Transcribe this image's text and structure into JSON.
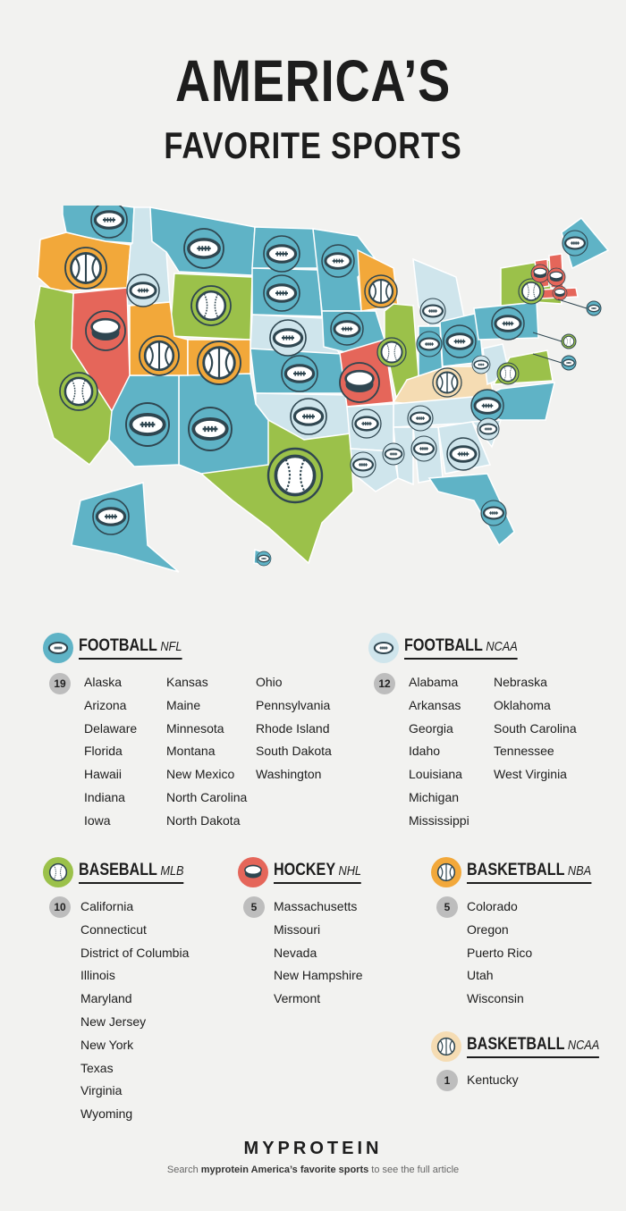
{
  "title": {
    "line1": "AMERICA’S",
    "line2": "FAVORITE SPORTS"
  },
  "colors": {
    "football_nfl": "#5fb3c6",
    "football_ncaa": "#cfe5ec",
    "baseball_mlb": "#9bc14a",
    "hockey_nhl": "#e5665a",
    "basketball_nba": "#f2a83a",
    "basketball_ncaa": "#f5dcb3",
    "icon_dark": "#2f4650"
  },
  "legend": {
    "football_nfl": {
      "label": "FOOTBALL",
      "league": "NFL",
      "count": "19",
      "icon": "football-icon",
      "columns": [
        [
          "Alaska",
          "Arizona",
          "Delaware",
          "Florida",
          "Hawaii",
          "Indiana",
          "Iowa"
        ],
        [
          "Kansas",
          "Maine",
          "Minnesota",
          "Montana",
          "New Mexico",
          "North Carolina",
          "North Dakota"
        ],
        [
          "Ohio",
          "Pennsylvania",
          "Rhode Island",
          "South Dakota",
          "Washington"
        ]
      ]
    },
    "football_ncaa": {
      "label": "FOOTBALL",
      "league": "NCAA",
      "count": "12",
      "icon": "football-icon",
      "columns": [
        [
          "Alabama",
          "Arkansas",
          "Georgia",
          "Idaho",
          "Louisiana",
          "Michigan",
          "Mississippi"
        ],
        [
          "Nebraska",
          "Oklahoma",
          "South Carolina",
          "Tennessee",
          "West Virginia"
        ]
      ]
    },
    "baseball_mlb": {
      "label": "BASEBALL",
      "league": "MLB",
      "count": "10",
      "icon": "baseball-icon",
      "columns": [
        [
          "California",
          "Connecticut",
          "District of Columbia",
          "Illinois",
          "Maryland",
          "New Jersey",
          "New York",
          "Texas",
          "Virginia",
          "Wyoming"
        ]
      ]
    },
    "hockey_nhl": {
      "label": "HOCKEY",
      "league": "NHL",
      "count": "5",
      "icon": "hockey-puck-icon",
      "columns": [
        [
          "Massachusetts",
          "Missouri",
          "Nevada",
          "New Hampshire",
          "Vermont"
        ]
      ]
    },
    "basketball_nba": {
      "label": "BASKETBALL",
      "league": "NBA",
      "count": "5",
      "icon": "basketball-icon",
      "columns": [
        [
          "Colorado",
          "Oregon",
          "Puerto Rico",
          "Utah",
          "Wisconsin"
        ]
      ]
    },
    "basketball_ncaa": {
      "label": "BASKETBALL",
      "league": "NCAA",
      "count": "1",
      "icon": "basketball-icon",
      "columns": [
        [
          "Kentucky"
        ]
      ]
    }
  },
  "brand": "MYPROTEIN",
  "footer": {
    "pre": "Search ",
    "bold": "myprotein America’s favorite sports",
    "post": " to see the full article"
  }
}
